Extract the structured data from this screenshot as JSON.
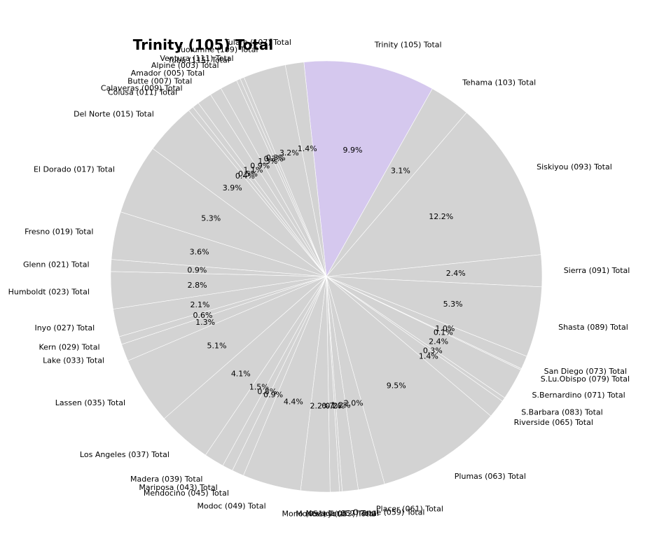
{
  "chart_data": {
    "type": "pie",
    "title": "Trinity (105) Total",
    "highlight_label": "Trinity (105) Total",
    "colors": {
      "highlight": "#d5c8ee",
      "default": "#d3d3d3",
      "edge": "#ffffff"
    },
    "slices": [
      {
        "label": "Trinity (105) Total",
        "pct": "9.9%",
        "value": 9.9
      },
      {
        "label": "Tehama (103) Total",
        "pct": "3.1%",
        "value": 3.1
      },
      {
        "label": "Siskiyou (093) Total",
        "pct": "12.2%",
        "value": 12.2
      },
      {
        "label": "Sierra (091) Total",
        "pct": "2.4%",
        "value": 2.4
      },
      {
        "label": "Shasta (089) Total",
        "pct": "5.3%",
        "value": 5.3
      },
      {
        "label": "San Diego (073) Total",
        "pct": "1.0%",
        "value": 1.0
      },
      {
        "label": "S.Lu.Obispo (079) Total",
        "pct": "0.1%",
        "value": 0.1
      },
      {
        "label": "S.Bernardino (071) Total",
        "pct": "2.4%",
        "value": 2.4
      },
      {
        "label": "S.Barbara (083) Total",
        "pct": "0.3%",
        "value": 0.3
      },
      {
        "label": "Riverside (065) Total",
        "pct": "1.4%",
        "value": 1.4
      },
      {
        "label": "Plumas (063) Total",
        "pct": "9.5%",
        "value": 9.5
      },
      {
        "label": "Placer (061) Total",
        "pct": "2.0%",
        "value": 2.0
      },
      {
        "label": "Orange (059) Total",
        "pct": "1.2%",
        "value": 1.2
      },
      {
        "label": "Nevada (057) Total",
        "pct": "0.2%",
        "value": 0.2
      },
      {
        "label": "Monterey (053) Total",
        "pct": "0.7%",
        "value": 0.7
      },
      {
        "label": "Mono (051) Total",
        "pct": "2.2%",
        "value": 2.2
      },
      {
        "label": "Modoc (049) Total",
        "pct": "4.4%",
        "value": 4.4
      },
      {
        "label": "Mendocino (045) Total",
        "pct": "0.9%",
        "value": 0.9
      },
      {
        "label": "Mariposa (043) Total",
        "pct": "0.8%",
        "value": 0.8
      },
      {
        "label": "Madera (039) Total",
        "pct": "1.5%",
        "value": 1.5
      },
      {
        "label": "Los Angeles (037) Total",
        "pct": "4.1%",
        "value": 4.1
      },
      {
        "label": "Lassen (035) Total",
        "pct": "5.1%",
        "value": 5.1
      },
      {
        "label": "Lake (033) Total",
        "pct": "1.3%",
        "value": 1.3
      },
      {
        "label": "Kern (029) Total",
        "pct": "0.6%",
        "value": 0.6
      },
      {
        "label": "Inyo (027) Total",
        "pct": "2.1%",
        "value": 2.1
      },
      {
        "label": "Humboldt (023) Total",
        "pct": "2.8%",
        "value": 2.8
      },
      {
        "label": "Glenn (021) Total",
        "pct": "0.9%",
        "value": 0.9
      },
      {
        "label": "Fresno (019) Total",
        "pct": "3.6%",
        "value": 3.6
      },
      {
        "label": "El Dorado (017) Total",
        "pct": "5.3%",
        "value": 5.3
      },
      {
        "label": "Del Norte (015) Total",
        "pct": "3.9%",
        "value": 3.9
      },
      {
        "label": "Colusa (011) Total",
        "pct": "0.4%",
        "value": 0.4
      },
      {
        "label": "Calaveras (009) Total",
        "pct": "0.5%",
        "value": 0.5
      },
      {
        "label": "Butte (007) Total",
        "pct": "1.1%",
        "value": 1.1
      },
      {
        "label": "Amador (005) Total",
        "pct": "0.9%",
        "value": 0.9
      },
      {
        "label": "Alpine (003) Total",
        "pct": "1.3%",
        "value": 1.3
      },
      {
        "label": "Yuba (115) Total",
        "pct": "0.3%",
        "value": 0.3
      },
      {
        "label": "Ventura (111) Total",
        "pct": "0.3%",
        "value": 0.3
      },
      {
        "label": "Tuolumne (109) Total",
        "pct": "3.2%",
        "value": 3.2
      },
      {
        "label": "Tulare (107) Total",
        "pct": "1.4%",
        "value": 1.4
      }
    ]
  }
}
